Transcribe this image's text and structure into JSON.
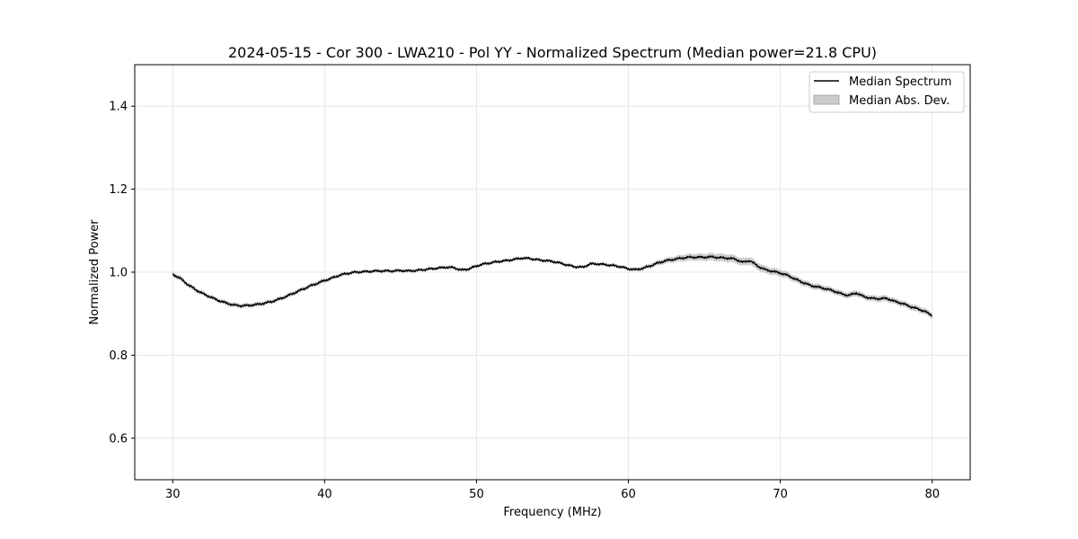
{
  "chart_data": {
    "type": "line",
    "title": "2024-05-15 - Cor 300 - LWA210 - Pol YY - Normalized Spectrum (Median power=21.8 CPU)",
    "xlabel": "Frequency (MHz)",
    "ylabel": "Normalized Power",
    "xlim": [
      27.5,
      82.5
    ],
    "ylim": [
      0.5,
      1.5
    ],
    "xticks": [
      30,
      40,
      50,
      60,
      70,
      80
    ],
    "xtick_labels": [
      "30",
      "40",
      "50",
      "60",
      "70",
      "80"
    ],
    "yticks": [
      0.6,
      0.8,
      1.0,
      1.2,
      1.4
    ],
    "ytick_labels": [
      "0.6",
      "0.8",
      "1.0",
      "1.2",
      "1.4"
    ],
    "grid": true,
    "legend_position": "top-right",
    "legend": [
      {
        "label": "Median Spectrum",
        "kind": "line",
        "color": "#000000"
      },
      {
        "label": "Median Abs. Dev.",
        "kind": "band",
        "color": "#aaaaaa"
      }
    ],
    "series": [
      {
        "name": "Median Spectrum",
        "x": [
          30,
          30.5,
          31,
          31.5,
          32,
          32.5,
          33,
          33.5,
          34,
          34.5,
          35,
          35.5,
          36,
          36.5,
          37,
          37.5,
          38,
          38.5,
          39,
          39.5,
          40,
          40.5,
          41,
          41.5,
          42,
          42.5,
          43,
          43.5,
          44,
          44.5,
          45,
          45.5,
          46,
          46.5,
          47,
          47.5,
          48,
          48.5,
          49,
          49.5,
          50,
          50.5,
          51,
          51.5,
          52,
          52.5,
          53,
          53.5,
          54,
          54.5,
          55,
          55.5,
          56,
          56.5,
          57,
          57.5,
          58,
          58.5,
          59,
          59.5,
          60,
          60.5,
          61,
          61.5,
          62,
          62.5,
          63,
          63.5,
          64,
          64.5,
          65,
          65.5,
          66,
          66.5,
          67,
          67.5,
          68,
          68.5,
          69,
          69.5,
          70,
          70.5,
          71,
          71.5,
          72,
          72.5,
          73,
          73.5,
          74,
          74.5,
          75,
          75.5,
          76,
          76.5,
          77,
          77.5,
          78,
          78.5,
          79,
          79.5,
          80
        ],
        "y": [
          0.995,
          0.985,
          0.97,
          0.958,
          0.948,
          0.94,
          0.932,
          0.926,
          0.921,
          0.919,
          0.92,
          0.922,
          0.925,
          0.929,
          0.935,
          0.942,
          0.95,
          0.958,
          0.966,
          0.973,
          0.98,
          0.986,
          0.993,
          0.997,
          1.0,
          1.001,
          1.002,
          1.003,
          1.003,
          1.003,
          1.004,
          1.003,
          1.004,
          1.006,
          1.008,
          1.01,
          1.012,
          1.011,
          1.005,
          1.008,
          1.015,
          1.02,
          1.023,
          1.026,
          1.028,
          1.031,
          1.034,
          1.033,
          1.03,
          1.028,
          1.026,
          1.022,
          1.017,
          1.013,
          1.012,
          1.02,
          1.02,
          1.018,
          1.016,
          1.013,
          1.008,
          1.006,
          1.01,
          1.016,
          1.023,
          1.028,
          1.031,
          1.034,
          1.036,
          1.036,
          1.036,
          1.037,
          1.035,
          1.034,
          1.032,
          1.024,
          1.028,
          1.015,
          1.006,
          1.002,
          0.998,
          0.992,
          0.983,
          0.975,
          0.968,
          0.964,
          0.96,
          0.955,
          0.948,
          0.944,
          0.95,
          0.941,
          0.937,
          0.936,
          0.937,
          0.93,
          0.925,
          0.918,
          0.912,
          0.906,
          0.895
        ]
      },
      {
        "name": "Median Abs. Dev.",
        "x": [
          30,
          32,
          34,
          36,
          38,
          40,
          42,
          44,
          46,
          48,
          50,
          52,
          54,
          56,
          58,
          60,
          62,
          64,
          66,
          68,
          70,
          72,
          74,
          76,
          78,
          80
        ],
        "y": [
          0.006,
          0.005,
          0.005,
          0.005,
          0.005,
          0.005,
          0.004,
          0.004,
          0.004,
          0.004,
          0.004,
          0.004,
          0.004,
          0.004,
          0.004,
          0.004,
          0.006,
          0.008,
          0.009,
          0.009,
          0.008,
          0.007,
          0.007,
          0.007,
          0.007,
          0.007
        ]
      }
    ]
  }
}
